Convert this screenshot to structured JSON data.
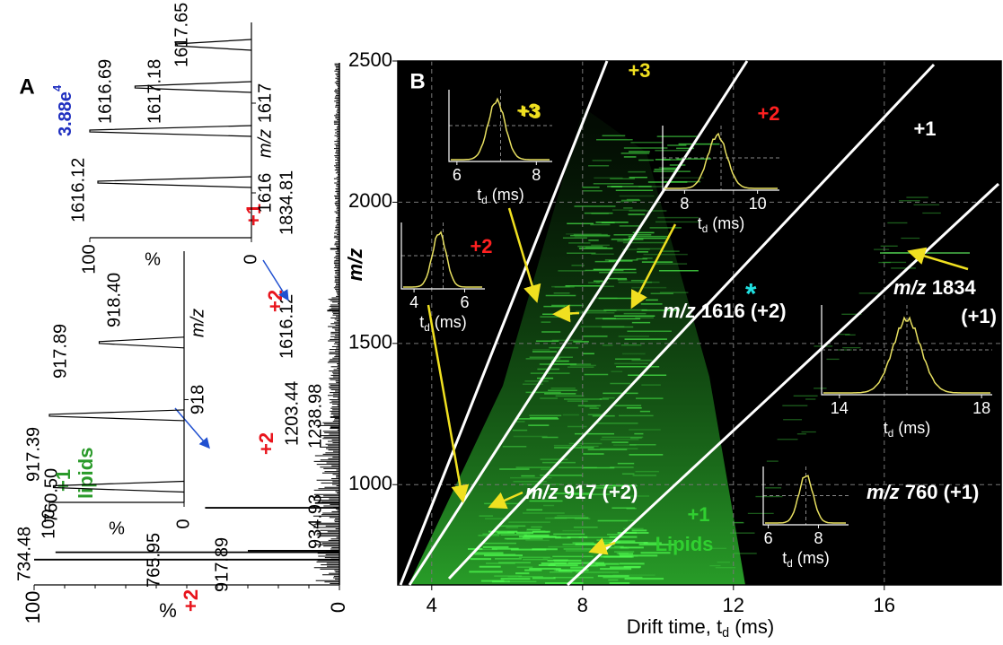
{
  "chart_data": [
    {
      "type": "spectrum",
      "label": "A",
      "scale_base": "3.88e",
      "scale_exp": "4",
      "xlabel": "%",
      "xlim": [
        0,
        100
      ],
      "xticks": [
        100,
        0
      ],
      "x": [
        734.48,
        760.5,
        765.95,
        917.89,
        934.93,
        1203.44,
        1238.98,
        1616.12,
        1834.81
      ],
      "x_labels": [
        "734.48",
        "760.50",
        "765.95",
        "917.89",
        "934.93",
        "1203.44",
        "1238.98",
        "1616.12",
        "1834.81"
      ],
      "values": [
        100,
        93,
        30,
        44,
        8,
        3,
        3,
        4,
        3
      ],
      "annotations": [
        {
          "text": "+1",
          "color": "#2a9a2a"
        },
        {
          "text": "lipids",
          "color": "#2a9a2a"
        },
        {
          "text": "+2",
          "color": "#e8141c"
        },
        {
          "text": "+2",
          "color": "#e8141c"
        },
        {
          "text": "+2",
          "color": "#e8141c"
        },
        {
          "text": "+1",
          "color": "#e8141c"
        }
      ],
      "insets": [
        {
          "xlabel": "m/z",
          "xlim": [
            917.28,
            919.04
          ],
          "xticks": [
            918
          ],
          "ylabel": "%",
          "yticks": [
            100,
            0
          ],
          "x": [
            917.39,
            917.89,
            918.4
          ],
          "values": [
            97,
            100,
            63
          ],
          "peak_labels": [
            "917.39",
            "917.89",
            "918.40"
          ]
        },
        {
          "xlabel": "m/z",
          "xlim": [
            1615.5,
            1617.9
          ],
          "xticks": [
            1616,
            1617
          ],
          "ylabel": "%",
          "yticks": [
            100,
            0
          ],
          "x": [
            1616.12,
            1616.69,
            1617.18,
            1617.65
          ],
          "values": [
            95,
            100,
            72,
            47
          ],
          "peak_labels": [
            "1616.12",
            "1616.69",
            "1617.18",
            "1617.65"
          ]
        }
      ]
    },
    {
      "type": "heatmap",
      "label": "B",
      "xlabel_parts": [
        "Drift time, t",
        "d",
        " (ms)"
      ],
      "ylabel": "m/z",
      "xlim": [
        3.1,
        19.1
      ],
      "xticks": [
        4,
        8,
        12,
        16
      ],
      "ylim": [
        645,
        2500
      ],
      "yticks": [
        1000,
        1500,
        2000,
        2500
      ],
      "grid": true,
      "charge_regions": [
        {
          "text": "+3",
          "color": "#f0e020"
        },
        {
          "text": "+2",
          "color": "#ff2020"
        },
        {
          "text": "+1",
          "color": "#ffffff"
        }
      ],
      "ion_labels": [
        {
          "mz": "m/z",
          "rest": " 1616 (+2)"
        },
        {
          "mz": "m/z",
          "rest": " 917 (+2)"
        },
        {
          "mz": "m/z",
          "rest": " 1834"
        },
        {
          "mz": "m/z",
          "rest": " 760 (+1)"
        }
      ],
      "notes": [
        {
          "text": "*",
          "color": "#20e0e0"
        },
        {
          "text": "(+1)",
          "color": "#ffffff"
        },
        {
          "text": "+1",
          "color": "#30d030"
        },
        {
          "text": "Lipids",
          "color": "#30d030"
        }
      ],
      "insets": [
        {
          "xlim": [
            5.8,
            8.4
          ],
          "xticks": [
            6,
            8
          ],
          "peak": 7.0,
          "xlabel_parts": [
            "t",
            "d",
            " (ms)"
          ],
          "charge": "+3",
          "charge_color": "#f0e020"
        },
        {
          "xlim": [
            7.4,
            10.6
          ],
          "xticks": [
            8,
            10
          ],
          "peak": 8.9,
          "xlabel_parts": [
            "t",
            "d",
            " (ms)"
          ]
        },
        {
          "xlim": [
            3.5,
            6.8
          ],
          "xticks": [
            4,
            6
          ],
          "peak": 5.0,
          "xlabel_parts": [
            "t",
            "d",
            " (ms)"
          ],
          "charge": "+2",
          "charge_color": "#ff2020"
        },
        {
          "xlim": [
            13.5,
            18.3
          ],
          "xticks": [
            14,
            18
          ],
          "peak": 15.9,
          "xlabel_parts": [
            "t",
            "d",
            " (ms)"
          ]
        },
        {
          "xlim": [
            5.8,
            9.2
          ],
          "xticks": [
            6,
            8
          ],
          "peak": 7.5,
          "xlabel_parts": [
            "t",
            "d",
            " (ms)"
          ]
        }
      ]
    }
  ]
}
